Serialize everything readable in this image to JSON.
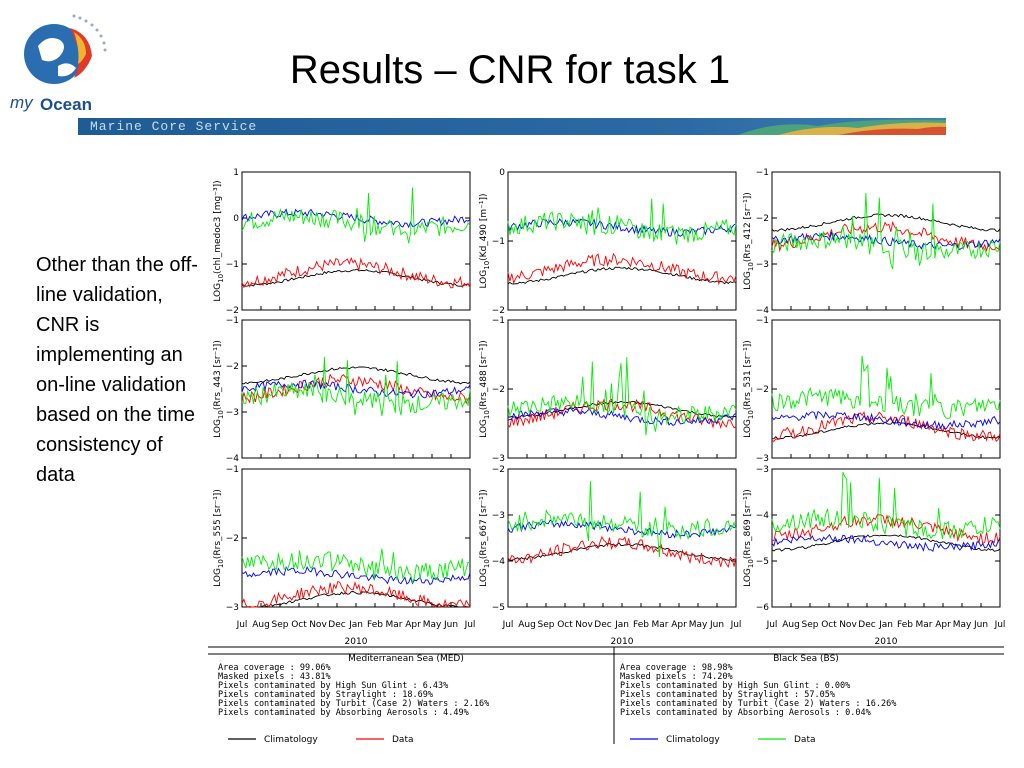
{
  "title": "Results – CNR for task 1",
  "logo": {
    "text_my": "my",
    "text_ocean": "Ocean",
    "icon": "globe-icon"
  },
  "banner": {
    "text": "Marine Core Service"
  },
  "side_text": "Other than the off-line validation, CNR is implementing an on-line validation based on the time consistency of data",
  "colors": {
    "climatology": "#000000",
    "med_data": "#ff0000",
    "bs_climatology": "#0000ff",
    "bs_data": "#00ee00"
  },
  "chart_data": {
    "type": "line",
    "x_tick_labels": [
      "Jul",
      "Aug",
      "Sep",
      "Oct",
      "Nov",
      "Dec",
      "Jan",
      "Feb",
      "Mar",
      "Apr",
      "May",
      "Jun",
      "Jul"
    ],
    "x_year_label": "2010",
    "panels": [
      {
        "ylabel_main": "LOG",
        "ylabel_sub": "10",
        "ylabel_rest": "(chl_medoc3 [mg⁻³])",
        "yticks": [
          "1",
          "0",
          "−1",
          "−2"
        ],
        "ymin": -2,
        "ymax": 1,
        "med_clim": -1.3,
        "med_data": -1.2,
        "bs_clim": 0.0,
        "bs_data": -0.1
      },
      {
        "ylabel_main": "LOG",
        "ylabel_sub": "10",
        "ylabel_rest": "(Kd_490 [m⁻¹])",
        "yticks": [
          "0",
          "−1",
          "−2"
        ],
        "ymin": -2,
        "ymax": 0,
        "med_clim": -1.5,
        "med_data": -1.4,
        "bs_clim": -0.8,
        "bs_data": -0.8
      },
      {
        "ylabel_main": "LOG",
        "ylabel_sub": "10",
        "ylabel_rest": "(Rrs_412 [sr⁻¹])",
        "yticks": [
          "−1",
          "−2",
          "−3",
          "−4"
        ],
        "ymin": -4,
        "ymax": -1,
        "med_clim": -2.1,
        "med_data": -2.4,
        "bs_clim": -2.5,
        "bs_data": -2.6
      },
      {
        "ylabel_main": "LOG",
        "ylabel_sub": "10",
        "ylabel_rest": "(Rrs_443 [sr⁻¹])",
        "yticks": [
          "−1",
          "−2",
          "−3",
          "−4"
        ],
        "ymin": -4,
        "ymax": -1,
        "med_clim": -2.2,
        "med_data": -2.5,
        "bs_clim": -2.5,
        "bs_data": -2.7
      },
      {
        "ylabel_main": "LOG",
        "ylabel_sub": "10",
        "ylabel_rest": "(Rrs_488 [sr⁻¹])",
        "yticks": [
          "−1",
          "−2",
          "−3"
        ],
        "ymin": -3,
        "ymax": -1,
        "med_clim": -2.3,
        "med_data": -2.35,
        "bs_clim": -2.4,
        "bs_data": -2.3
      },
      {
        "ylabel_main": "LOG",
        "ylabel_sub": "10",
        "ylabel_rest": "(Rrs_531 [sr⁻¹])",
        "yticks": [
          "−1",
          "−2",
          "−3"
        ],
        "ymin": -3,
        "ymax": -1,
        "med_clim": -2.6,
        "med_data": -2.55,
        "bs_clim": -2.45,
        "bs_data": -2.2
      },
      {
        "ylabel_main": "LOG",
        "ylabel_sub": "10",
        "ylabel_rest": "(Rrs_555 [sr⁻¹])",
        "yticks": [
          "−1",
          "−2",
          "−3"
        ],
        "ymin": -3,
        "ymax": -1,
        "med_clim": -2.9,
        "med_data": -2.85,
        "bs_clim": -2.55,
        "bs_data": -2.4
      },
      {
        "ylabel_main": "LOG",
        "ylabel_sub": "10",
        "ylabel_rest": "(Rrs_667 [sr⁻¹])",
        "yticks": [
          "−2",
          "−3",
          "−4",
          "−5"
        ],
        "ymin": -5,
        "ymax": -2,
        "med_clim": -3.8,
        "med_data": -3.8,
        "bs_clim": -3.3,
        "bs_data": -3.2
      },
      {
        "ylabel_main": "LOG",
        "ylabel_sub": "10",
        "ylabel_rest": "(Rrs_869 [sr⁻¹])",
        "yticks": [
          "−3",
          "−4",
          "−5",
          "−6"
        ],
        "ymin": -6,
        "ymax": -3,
        "med_clim": -4.6,
        "med_data": -4.3,
        "bs_clim": -4.6,
        "bs_data": -4.2
      }
    ],
    "legend": {
      "left": {
        "region": "Mediterranean Sea (MED)",
        "stats": [
          "Area coverage : 99.06%",
          "Masked pixels : 43.81%",
          "Pixels contaminated by High Sun Glint : 6.43%",
          "Pixels contaminated by Straylight : 18.69%",
          "Pixels contaminated by Turbit (Case 2) Waters : 2.16%",
          "Pixels contaminated by Absorbing Aerosols : 4.49%"
        ],
        "series": [
          "Climatology",
          "Data"
        ]
      },
      "right": {
        "region": "Black Sea (BS)",
        "stats": [
          "Area coverage : 98.98%",
          "Masked pixels : 74.20%",
          "Pixels contaminated by High Sun Glint : 0.00%",
          "Pixels contaminated by Straylight : 57.05%",
          "Pixels contaminated by Turbit (Case 2) Waters : 16.26%",
          "Pixels contaminated by Absorbing Aerosols : 0.04%"
        ],
        "series": [
          "Climatology",
          "Data"
        ]
      }
    }
  }
}
